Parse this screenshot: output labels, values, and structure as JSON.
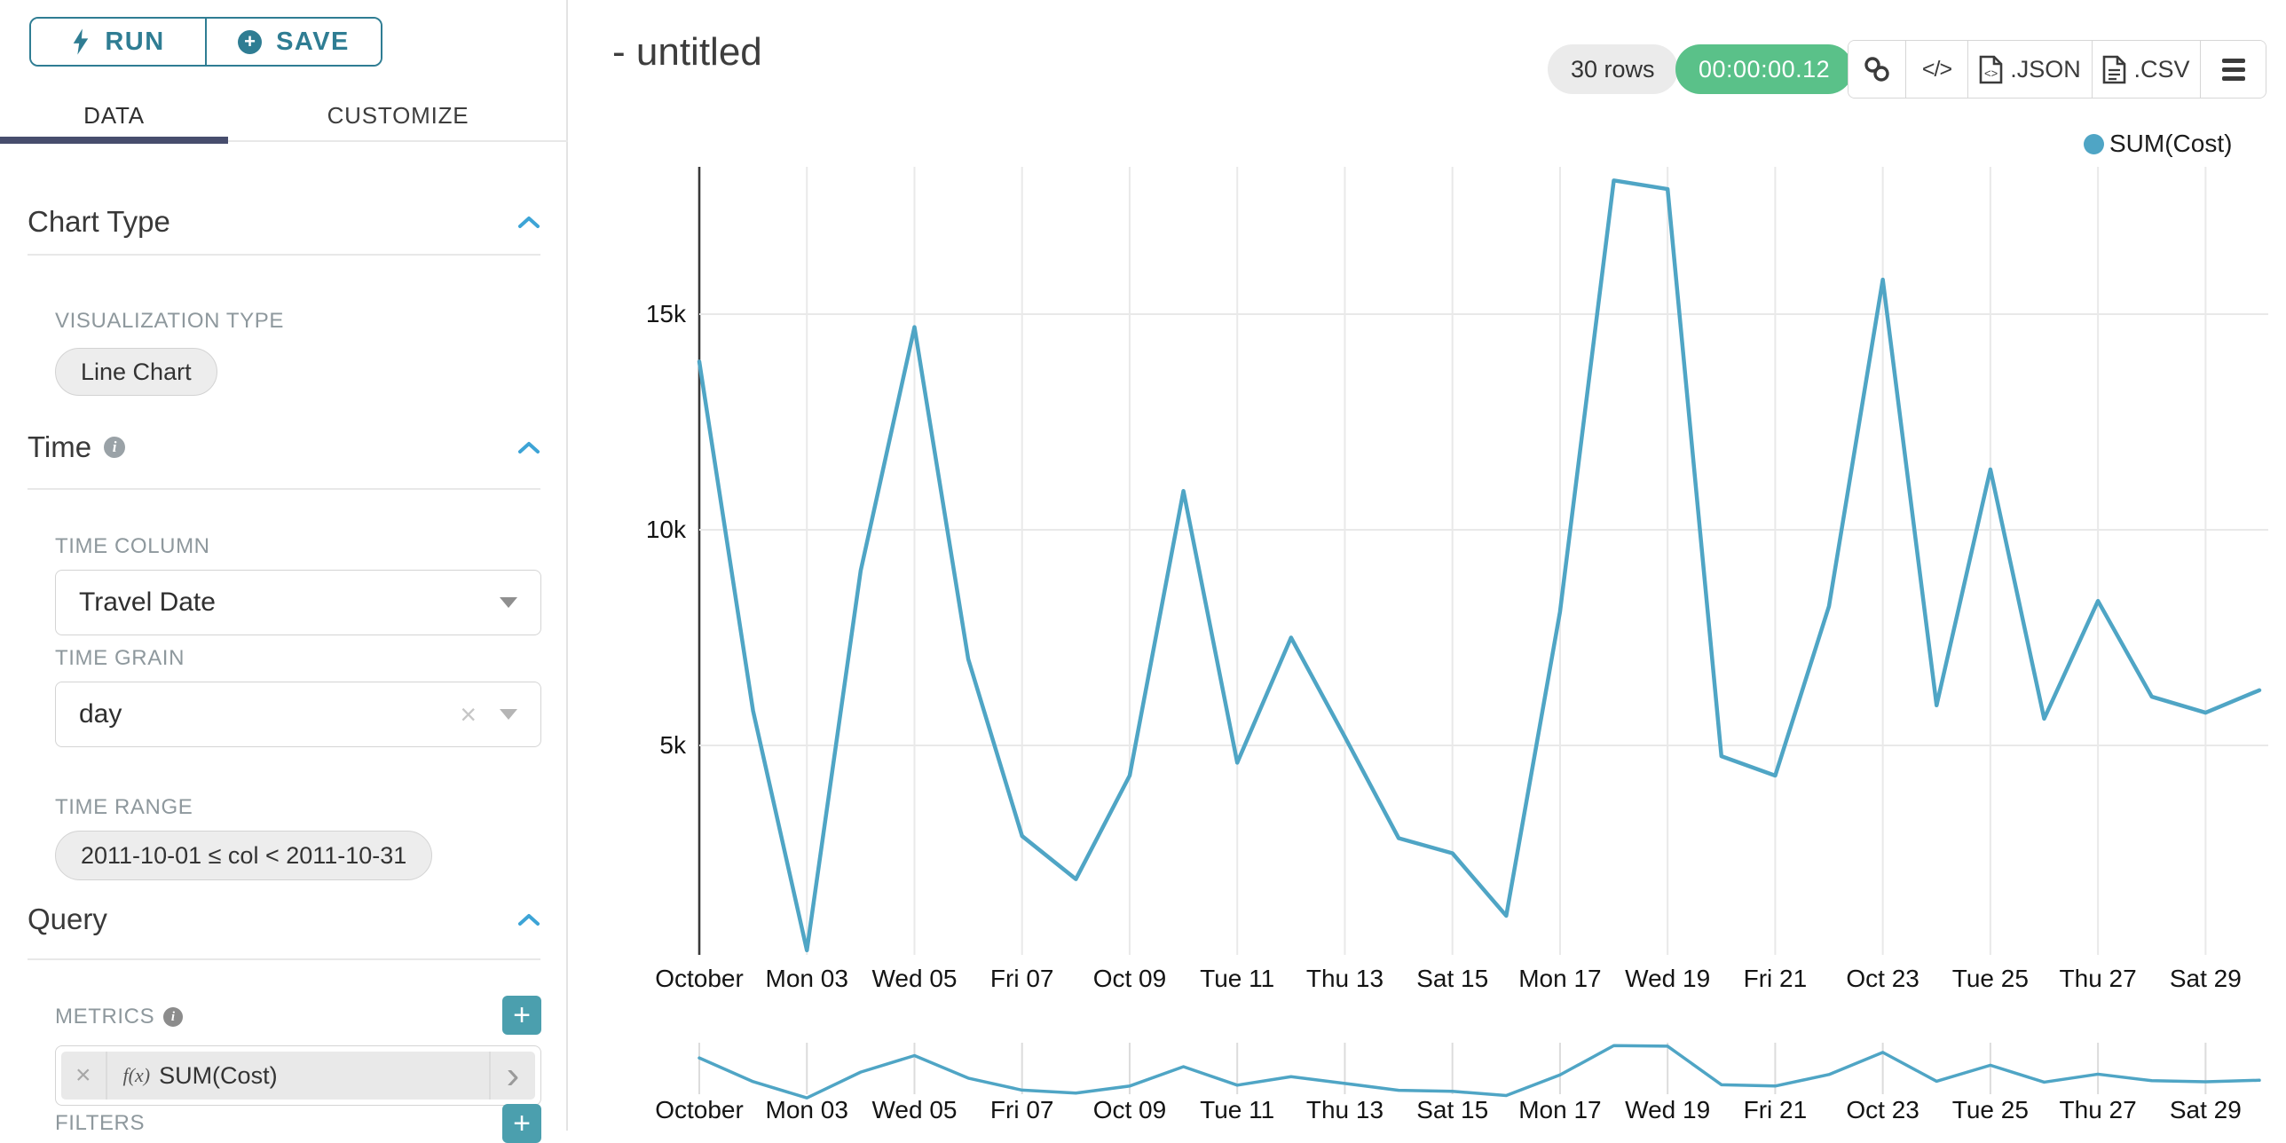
{
  "sidebar": {
    "run_label": "RUN",
    "save_label": "SAVE",
    "tabs": [
      {
        "label": "DATA",
        "active": true
      },
      {
        "label": "CUSTOMIZE",
        "active": false
      }
    ],
    "chart_type": {
      "title": "Chart Type",
      "viz_label": "VISUALIZATION TYPE",
      "viz_value": "Line Chart"
    },
    "time": {
      "title": "Time",
      "column_label": "TIME COLUMN",
      "column_value": "Travel Date",
      "grain_label": "TIME GRAIN",
      "grain_value": "day",
      "range_label": "TIME RANGE",
      "range_value": "2011-10-01 ≤ col < 2011-10-31"
    },
    "query": {
      "title": "Query",
      "metrics_label": "METRICS",
      "metric_value": "SUM(Cost)",
      "filters_label": "FILTERS"
    }
  },
  "header": {
    "title": "- untitled",
    "rows_badge": "30 rows",
    "timer_badge": "00:00:00.12",
    "json_label": ".JSON",
    "csv_label": ".CSV"
  },
  "legend": {
    "label": "SUM(Cost)"
  },
  "icons": {
    "clear": "×",
    "code": "</>",
    "metric_fn": "f(x)",
    "chevron_right": "›",
    "plus": "+"
  },
  "colors": {
    "accent_teal": "#2f7d93",
    "plus_teal": "#4b9fae",
    "tab_underline": "#474d6d",
    "section_chevron_blue": "#3da4d6",
    "timer_green": "#5ac189",
    "line_blue": "#4fa5c5",
    "gridline": "#e9e9e9",
    "axis_line": "#3a3a3a"
  },
  "chart_data": {
    "type": "line",
    "title": "",
    "xlabel": "",
    "ylabel": "",
    "legend_position": "top-right",
    "grid": true,
    "has_range_selector": true,
    "x": [
      "2011-10-01",
      "2011-10-02",
      "2011-10-03",
      "2011-10-04",
      "2011-10-05",
      "2011-10-06",
      "2011-10-07",
      "2011-10-08",
      "2011-10-09",
      "2011-10-10",
      "2011-10-11",
      "2011-10-12",
      "2011-10-13",
      "2011-10-14",
      "2011-10-15",
      "2011-10-16",
      "2011-10-17",
      "2011-10-18",
      "2011-10-19",
      "2011-10-20",
      "2011-10-21",
      "2011-10-22",
      "2011-10-23",
      "2011-10-24",
      "2011-10-25",
      "2011-10-26",
      "2011-10-27",
      "2011-10-28",
      "2011-10-29",
      "2011-10-30"
    ],
    "series": [
      {
        "name": "SUM(Cost)",
        "values": [
          13900,
          5800,
          250,
          9050,
          14700,
          7000,
          2900,
          1900,
          4300,
          10900,
          4600,
          7500,
          5200,
          2850,
          2500,
          1050,
          8100,
          18100,
          17900,
          4750,
          4300,
          8230,
          15800,
          5930,
          11400,
          5620,
          8350,
          6130,
          5760,
          6280
        ]
      }
    ],
    "x_tick_labels": [
      "October",
      "Mon 03",
      "Wed 05",
      "Fri 07",
      "Oct 09",
      "Tue 11",
      "Thu 13",
      "Sat 15",
      "Mon 17",
      "Wed 19",
      "Fri 21",
      "Oct 23",
      "Tue 25",
      "Thu 27",
      "Sat 29"
    ],
    "x_tick_day_indices": [
      0,
      2,
      4,
      6,
      8,
      10,
      12,
      14,
      16,
      18,
      20,
      22,
      24,
      26,
      28
    ],
    "y_ticks": [
      5000,
      10000,
      15000
    ],
    "y_tick_labels": [
      "5k",
      "10k",
      "15k"
    ],
    "ylim": [
      0,
      18500
    ]
  }
}
